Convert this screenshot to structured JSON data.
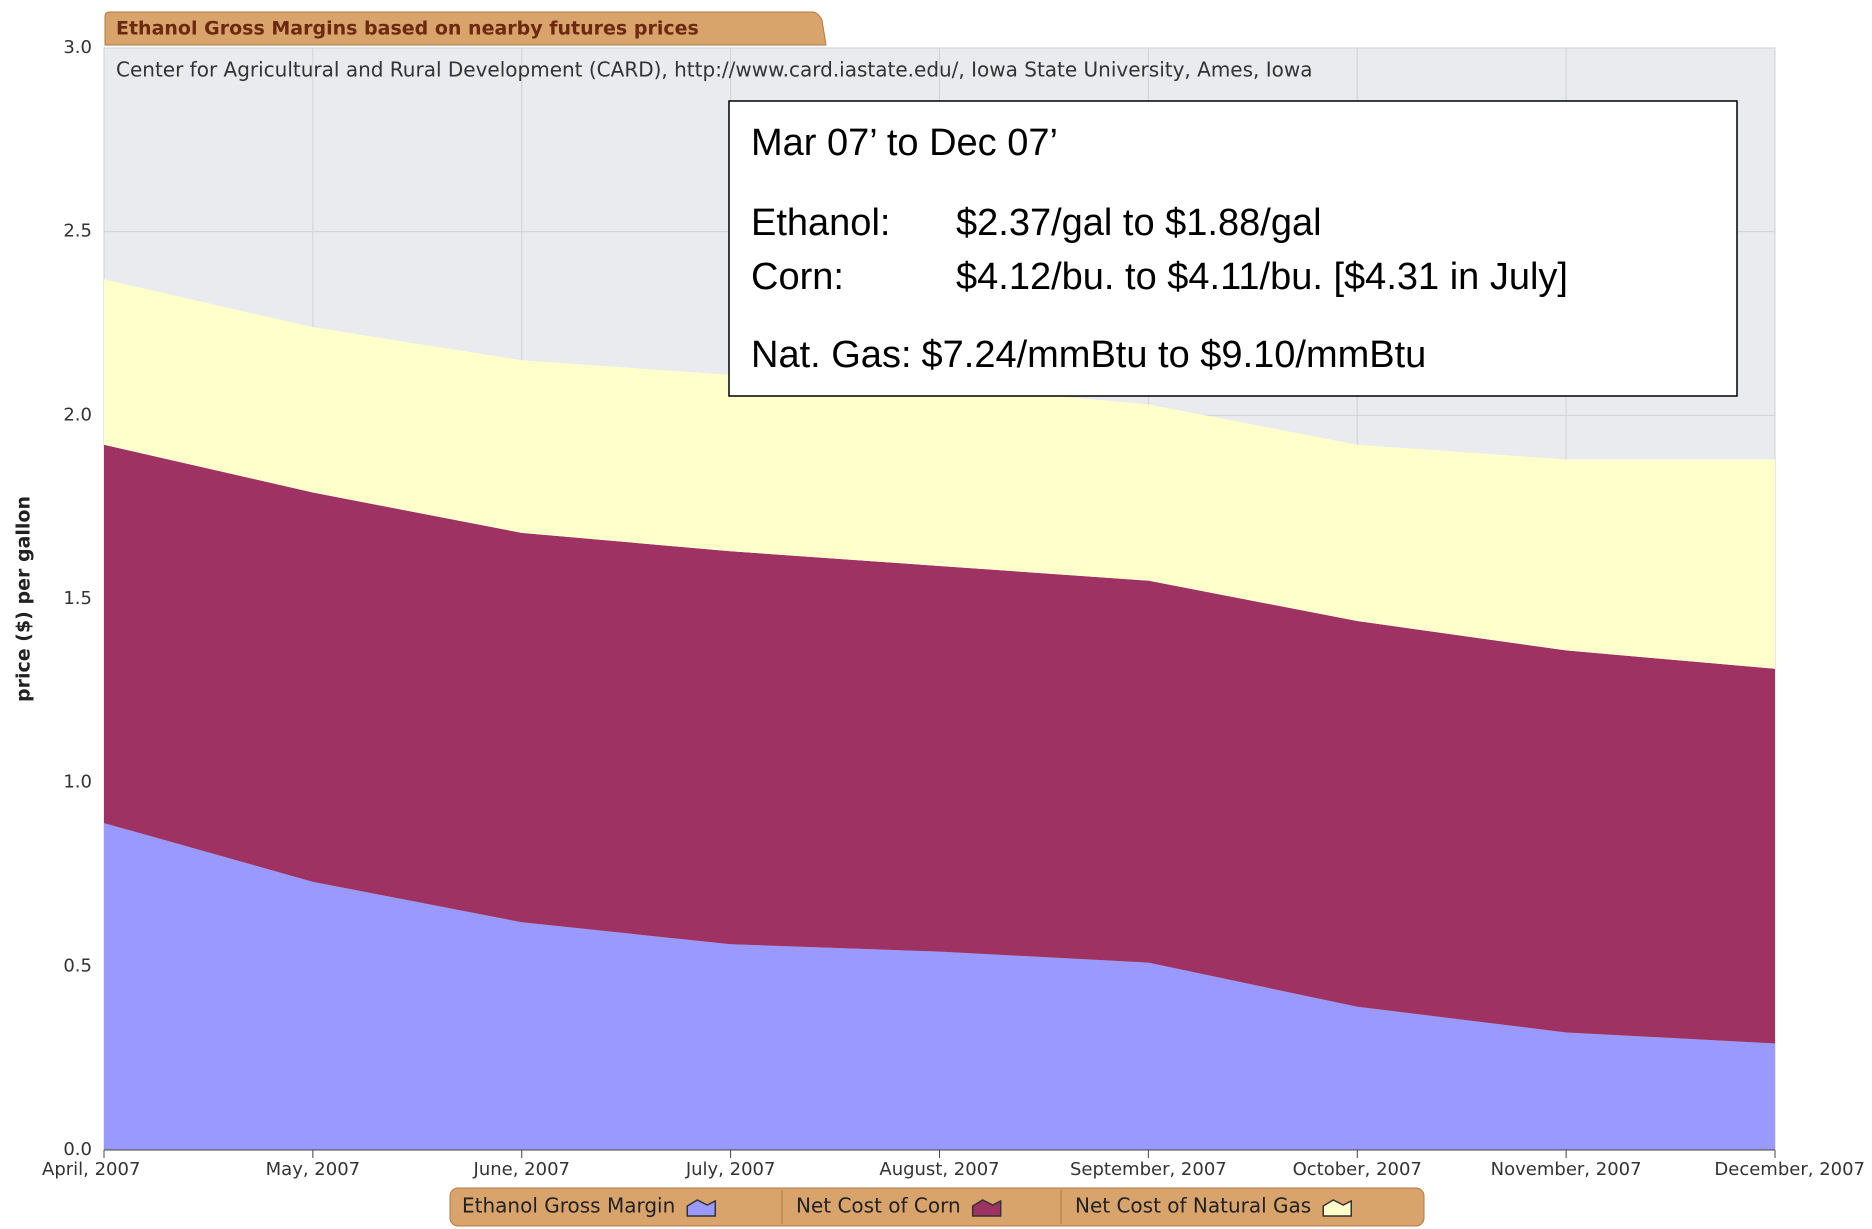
{
  "chart_data": {
    "type": "stacked_area",
    "title": "Ethanol Gross Margins based on nearby futures prices",
    "subtitle": "Center for Agricultural and Rural Development (CARD), http://www.card.iastate.edu/, Iowa State University, Ames, Iowa",
    "y_label": "price ($) per gallon",
    "categories": [
      "April, 2007",
      "May, 2007",
      "June, 2007",
      "July, 2007",
      "August, 2007",
      "September, 2007",
      "October, 2007",
      "November, 2007",
      "December, 2007"
    ],
    "series": [
      {
        "name": "Ethanol Gross Margin",
        "color": "#9999ff",
        "values": [
          0.89,
          0.73,
          0.62,
          0.56,
          0.54,
          0.51,
          0.39,
          0.32,
          0.29
        ]
      },
      {
        "name": "Net Cost of Corn",
        "color": "#9e3363",
        "values": [
          1.03,
          1.06,
          1.06,
          1.07,
          1.05,
          1.04,
          1.05,
          1.04,
          1.02
        ]
      },
      {
        "name": "Net Cost of Natural Gas",
        "color": "#ffffcc",
        "values": [
          0.45,
          0.45,
          0.47,
          0.48,
          0.49,
          0.48,
          0.48,
          0.52,
          0.57
        ]
      }
    ],
    "ylim": [
      0,
      3
    ],
    "yticks": [
      {
        "value": 0,
        "label": "0.0"
      },
      0.5,
      {
        "value": 1,
        "label": "1.0"
      },
      1.5,
      {
        "value": 2,
        "label": "2.0"
      },
      2.5,
      {
        "value": 3,
        "label": "3.0"
      }
    ],
    "grid": true,
    "annotation": {
      "heading": "Mar 07’ to Dec 07’",
      "lines": [
        {
          "label": "Ethanol:",
          "text": "$2.37/gal to $1.88/gal"
        },
        {
          "label": "Corn:",
          "text": "$4.12/bu. to $4.11/bu. [$4.31 in July]"
        },
        {
          "label": "Nat. Gas:",
          "text": "$7.24/mmBtu to $9.10/mmBtu"
        }
      ]
    }
  }
}
